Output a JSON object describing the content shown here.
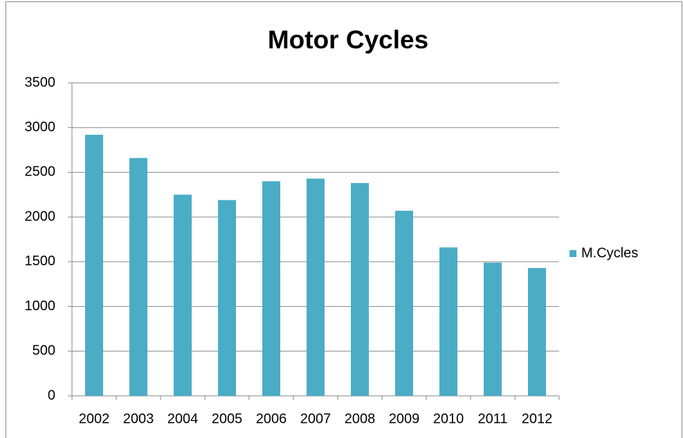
{
  "chart_data": {
    "type": "bar",
    "title": "Motor Cycles",
    "categories": [
      "2002",
      "2003",
      "2004",
      "2005",
      "2006",
      "2007",
      "2008",
      "2009",
      "2010",
      "2011",
      "2012"
    ],
    "series": [
      {
        "name": "M.Cycles",
        "color": "#4bacc6",
        "values": [
          2920,
          2660,
          2250,
          2190,
          2400,
          2430,
          2380,
          2070,
          1660,
          1490,
          1430
        ]
      }
    ],
    "ylim": [
      0,
      3500
    ],
    "yticks": [
      0,
      500,
      1000,
      1500,
      2000,
      2500,
      3000,
      3500
    ],
    "grid": true,
    "legend": "right"
  }
}
